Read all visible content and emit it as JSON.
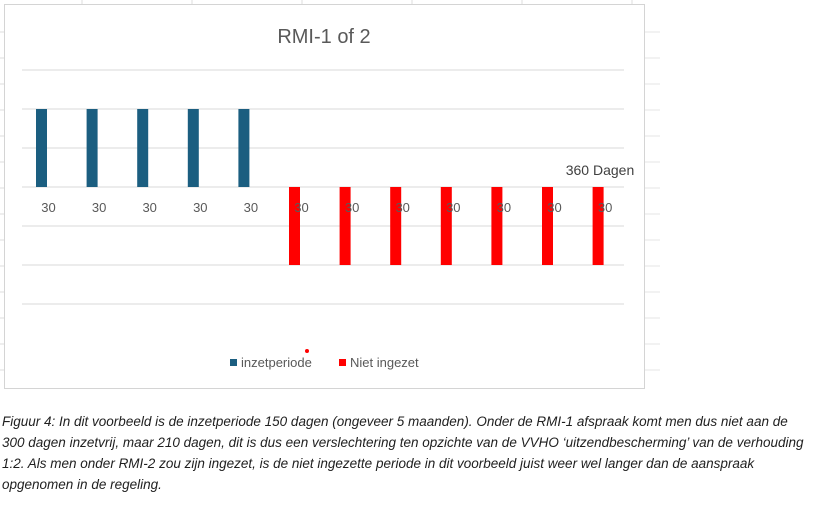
{
  "chart_data": {
    "type": "bar",
    "title": "RMI-1 of 2",
    "categories": [
      "30",
      "30",
      "30",
      "30",
      "30",
      "30",
      "30",
      "30",
      "30",
      "30",
      "30",
      "30"
    ],
    "series": [
      {
        "name": "inzetperiode",
        "color": "#1b5e80",
        "values": [
          2,
          2,
          2,
          2,
          2,
          0,
          0,
          0,
          0,
          0,
          0,
          0
        ]
      },
      {
        "name": "Niet ingezet",
        "color": "#ff0000",
        "values": [
          0,
          0,
          0,
          0,
          0,
          -2,
          -2,
          -2,
          -2,
          -2,
          -2,
          -2
        ]
      }
    ],
    "annotation": "360 Dagen",
    "ylim": [
      -2,
      2
    ],
    "grid": true,
    "legend_position": "bottom"
  },
  "caption": "Figuur 4: In dit voorbeeld is de inzetperiode 150 dagen (ongeveer 5 maanden). Onder de RMI-1 afspraak komt men dus niet aan de 300 dagen inzetvrij, maar 210 dagen, dit is dus een verslechtering ten opzichte van de VVHO ‘uitzendbescherming’ van de verhouding 1:2. Als men onder RMI-2 zou zijn ingezet, is de niet ingezette periode in dit voorbeeld juist weer wel langer dan de aanspraak opgenomen in de regeling."
}
